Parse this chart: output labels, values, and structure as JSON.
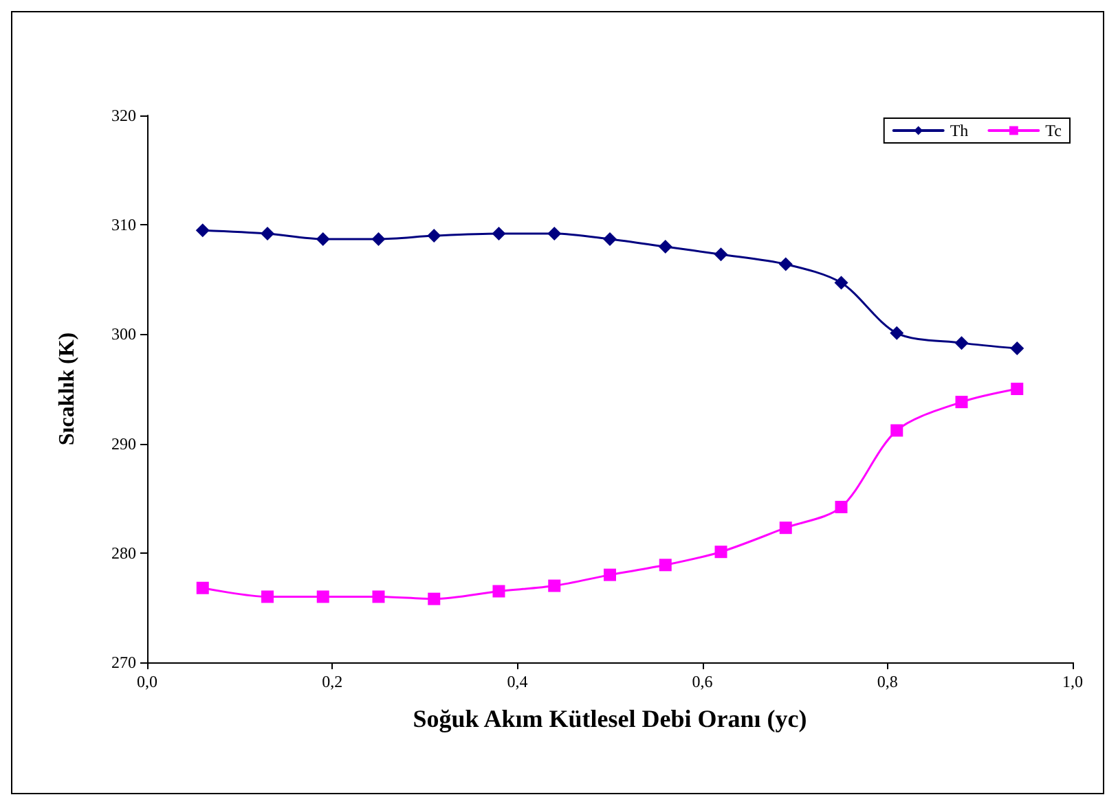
{
  "chart_data": {
    "type": "line",
    "xlabel": "Soğuk Akım Kütlesel Debi Oranı (yc)",
    "ylabel": "Sıcaklık (K)",
    "x": [
      0.06,
      0.13,
      0.19,
      0.25,
      0.31,
      0.38,
      0.44,
      0.5,
      0.56,
      0.62,
      0.69,
      0.75,
      0.81,
      0.88,
      0.94
    ],
    "series": [
      {
        "name": "Th",
        "color": "#000080",
        "marker": "diamond",
        "values": [
          309.5,
          309.2,
          308.7,
          308.7,
          309.0,
          309.2,
          309.2,
          308.7,
          308.0,
          307.3,
          306.4,
          304.7,
          300.1,
          299.2,
          298.7
        ]
      },
      {
        "name": "Tc",
        "color": "#ff00ff",
        "marker": "square",
        "values": [
          276.8,
          276.0,
          276.0,
          276.0,
          275.8,
          276.5,
          277.0,
          278.0,
          278.9,
          280.1,
          282.3,
          284.2,
          291.2,
          293.8,
          295.0
        ]
      }
    ],
    "xlim": [
      0,
      1
    ],
    "xticks": [
      {
        "value": 0,
        "label": "0,0"
      },
      {
        "value": 0.2,
        "label": "0,2"
      },
      {
        "value": 0.4,
        "label": "0,4"
      },
      {
        "value": 0.6,
        "label": "0,6"
      },
      {
        "value": 0.8,
        "label": "0,8"
      },
      {
        "value": 1,
        "label": "1,0"
      }
    ],
    "ylim": [
      270,
      320
    ],
    "yticks": [
      270,
      280,
      290,
      300,
      310,
      320
    ],
    "grid": false,
    "legend": "top right",
    "line_style": "solid"
  }
}
